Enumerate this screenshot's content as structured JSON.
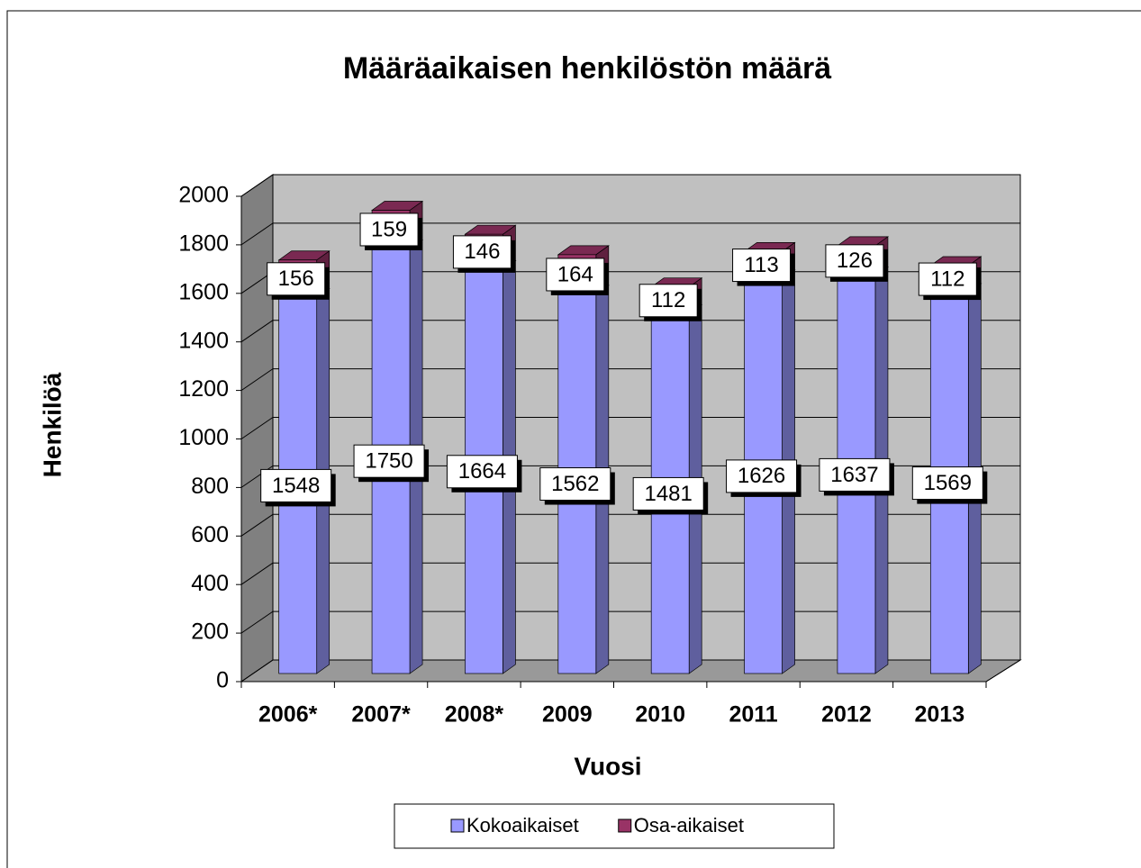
{
  "chart_data": {
    "type": "bar",
    "stacked": true,
    "title": "Määräaikaisen henkilöstön määrä",
    "x_label": "Vuosi",
    "y_label": "Henkilöä",
    "categories": [
      "2006*",
      "2007*",
      "2008*",
      "2009",
      "2010",
      "2011",
      "2012",
      "2013"
    ],
    "series": [
      {
        "name": "Kokoaikaiset",
        "color": "#9999ff",
        "values": [
          1548,
          1750,
          1664,
          1562,
          1481,
          1626,
          1637,
          1569
        ]
      },
      {
        "name": "Osa-aikaiset",
        "color": "#993366",
        "values": [
          156,
          159,
          146,
          164,
          112,
          113,
          126,
          112
        ]
      }
    ],
    "ylim": [
      0,
      2000
    ],
    "yticks": [
      0,
      200,
      400,
      600,
      800,
      1000,
      1200,
      1400,
      1600,
      1800,
      2000
    ],
    "grid": true,
    "legend": "bottom"
  }
}
